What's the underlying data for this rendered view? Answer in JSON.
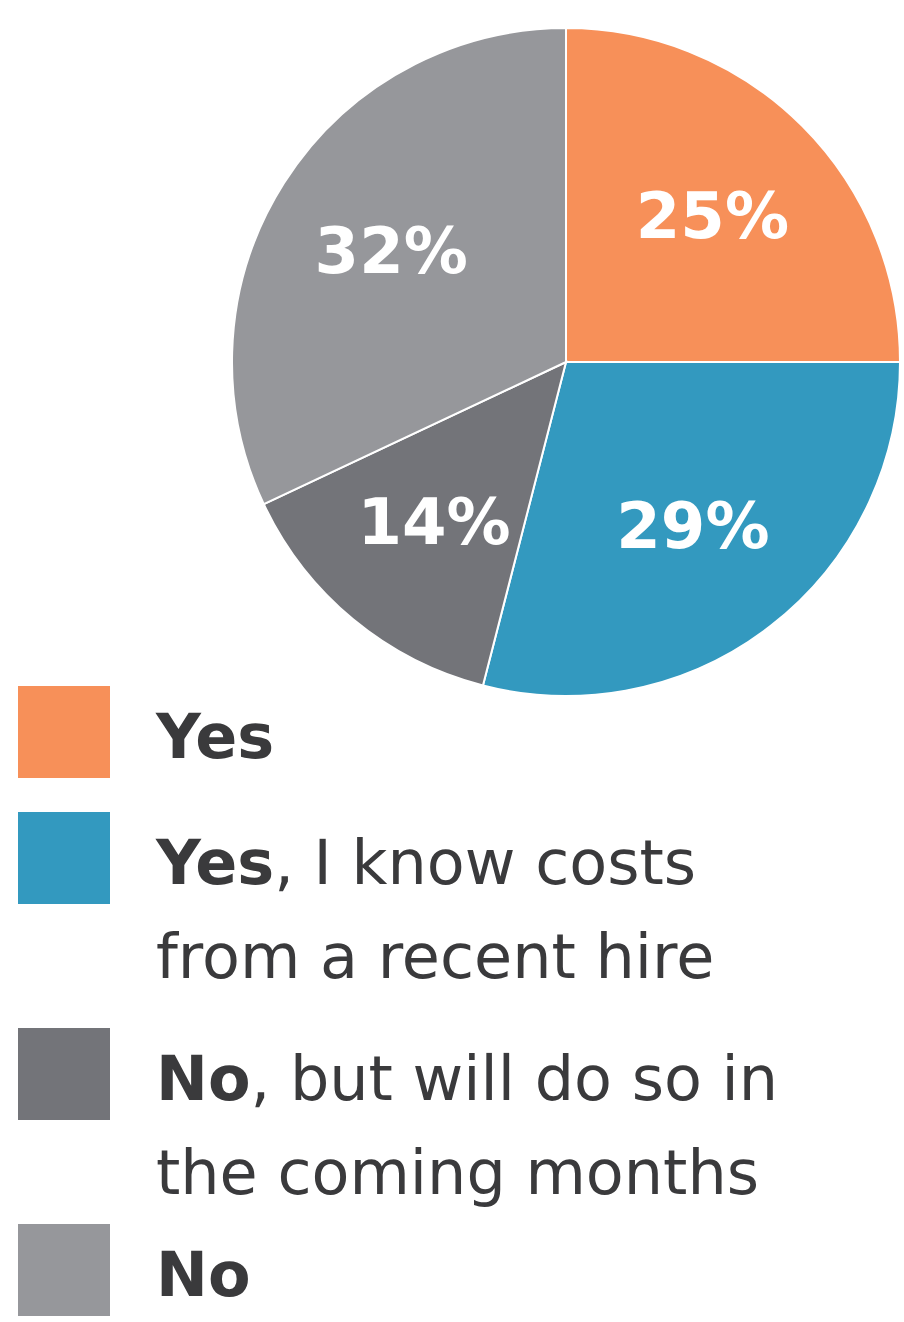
{
  "chart_data": {
    "type": "pie",
    "categories": [
      "Yes",
      "Yes, I know costs from a recent hire",
      "No, but will do so in the coming months",
      "No"
    ],
    "values": [
      25,
      29,
      14,
      32
    ],
    "colors": [
      "#f79059",
      "#3399bf",
      "#737479",
      "#96979b"
    ],
    "value_labels": [
      "25%",
      "29%",
      "14%",
      "32%"
    ],
    "legend": "bottom"
  }
}
